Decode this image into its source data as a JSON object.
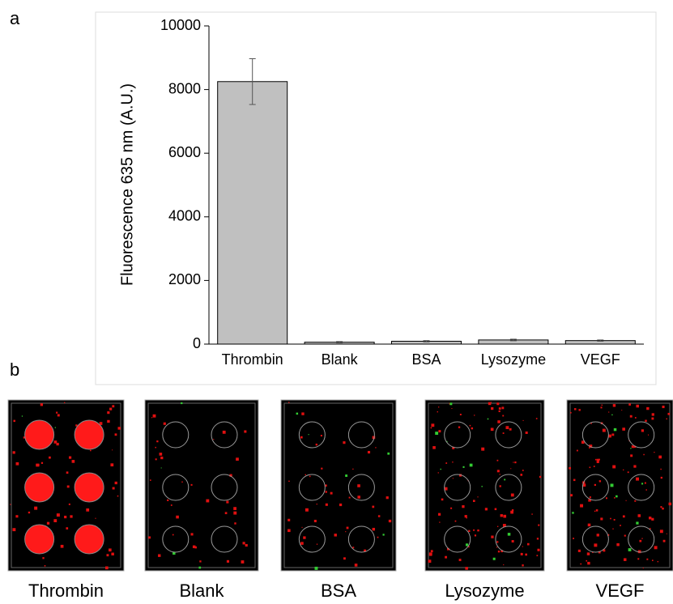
{
  "panel_labels": [
    "a",
    "b"
  ],
  "chart_data": {
    "type": "bar",
    "y_label": "Fluorescence 635 nm (A.U.)",
    "categories": [
      "Thrombin",
      "Blank",
      "BSA",
      "Lysozyme",
      "VEGF"
    ],
    "values": [
      8250,
      60,
      90,
      130,
      110
    ],
    "errors": [
      720,
      20,
      20,
      25,
      20
    ],
    "color": "#c0c0c0",
    "ylim": [
      0,
      10000
    ],
    "yticks": [
      0,
      2000,
      4000,
      6000,
      8000,
      10000
    ]
  },
  "images": {
    "labels": [
      "Thrombin",
      "Blank",
      "BSA",
      "Lysozyme",
      "VEGF"
    ]
  }
}
